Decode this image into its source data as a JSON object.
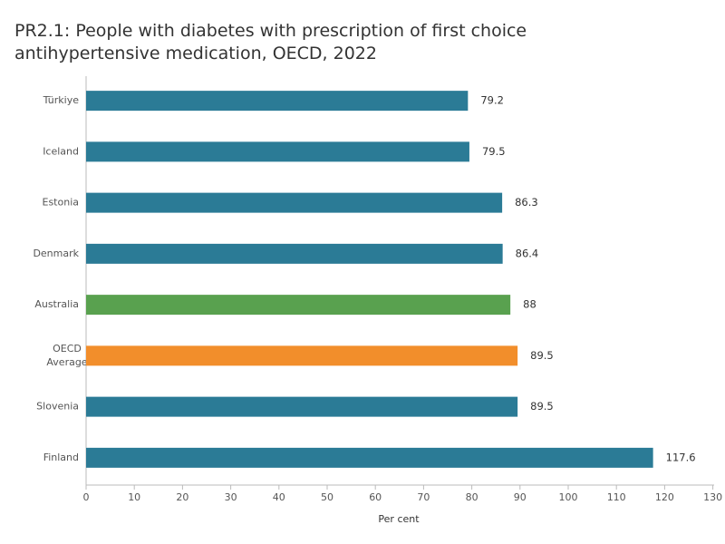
{
  "chart_data": {
    "type": "hbar",
    "title": "PR2.1: People with diabetes with prescription of first choice antihypertensive medication, OECD, 2022",
    "x_label": "Per cent",
    "categories": [
      "Türkiye",
      "Iceland",
      "Estonia",
      "Denmark",
      "Australia",
      "OECD Average",
      "Slovenia",
      "Finland"
    ],
    "values": [
      79.2,
      79.5,
      86.3,
      86.4,
      88,
      89.5,
      89.5,
      117.6
    ],
    "colors": [
      "#2b7b96",
      "#2b7b96",
      "#2b7b96",
      "#2b7b96",
      "#59a14f",
      "#f28e2b",
      "#2b7b96",
      "#2b7b96"
    ],
    "xlim": [
      0,
      130
    ],
    "xticks": [
      0,
      10,
      20,
      30,
      40,
      50,
      60,
      70,
      80,
      90,
      100,
      110,
      120,
      130
    ],
    "grid": false
  }
}
